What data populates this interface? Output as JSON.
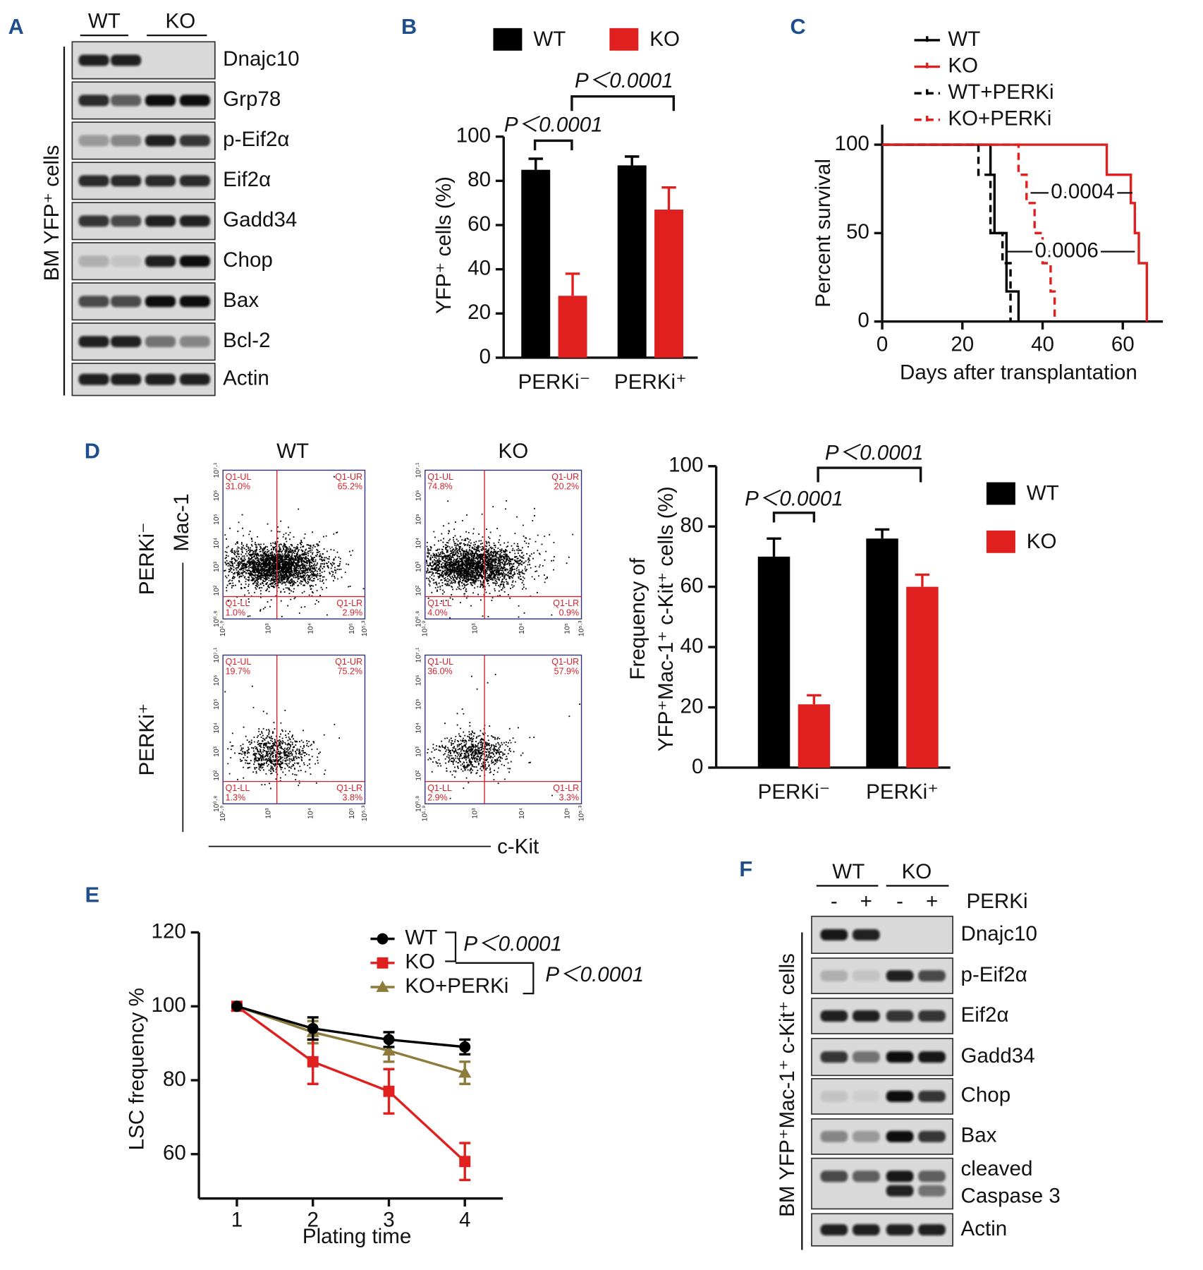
{
  "chart_data": [
    {
      "panel": "B",
      "type": "bar",
      "categories": [
        "PERKi⁻",
        "PERKi⁺"
      ],
      "series": [
        {
          "name": "WT",
          "color": "#000000",
          "values": [
            85,
            87
          ],
          "errors": [
            5,
            4
          ]
        },
        {
          "name": "KO",
          "color": "#e0201f",
          "values": [
            28,
            67
          ],
          "errors": [
            10,
            10
          ]
        }
      ],
      "y_label": "YFP⁺ cells (%)",
      "ylim": [
        0,
        100
      ],
      "yticks": [
        0,
        20,
        40,
        60,
        80,
        100
      ],
      "annotations": [
        "P＜0.0001",
        "P＜0.0001"
      ]
    },
    {
      "panel": "C",
      "type": "survival",
      "series": [
        {
          "name": "WT",
          "color": "#000000",
          "dashed": false,
          "x": [
            0,
            27,
            28,
            31,
            34
          ],
          "values": [
            100,
            83,
            50,
            17,
            0
          ]
        },
        {
          "name": "KO",
          "color": "#e0201f",
          "dashed": false,
          "x": [
            0,
            56,
            62,
            63,
            64,
            66
          ],
          "values": [
            100,
            83,
            67,
            50,
            33,
            0
          ]
        },
        {
          "name": "WT+PERKi",
          "color": "#000000",
          "dashed": true,
          "x": [
            0,
            24,
            27,
            30,
            32
          ],
          "values": [
            100,
            83,
            50,
            33,
            0
          ]
        },
        {
          "name": "KO+PERKi",
          "color": "#e0201f",
          "dashed": true,
          "x": [
            0,
            34,
            36,
            38,
            40,
            42,
            43
          ],
          "values": [
            100,
            83,
            67,
            50,
            33,
            17,
            0
          ]
        }
      ],
      "x_label": "Days after transplantation",
      "y_label": "Percent survival",
      "xlim": [
        0,
        70
      ],
      "xticks": [
        0,
        20,
        40,
        60
      ],
      "ylim": [
        0,
        100
      ],
      "yticks": [
        0,
        50,
        100
      ],
      "annotations": [
        "0.0004",
        "0.0006"
      ]
    },
    {
      "type": "bar",
      "categories": [
        "PERKi⁻",
        "PERKi⁺"
      ],
      "series": [
        {
          "name": "WT",
          "color": "#000000",
          "values": [
            70,
            76
          ],
          "errors": [
            6,
            3
          ]
        },
        {
          "name": "KO",
          "color": "#e0201f",
          "values": [
            21,
            60
          ],
          "errors": [
            3,
            4
          ]
        }
      ],
      "y_label": [
        "Frequency of",
        "YFP⁺Mac-1⁺ c-Kit⁺ cells (%)"
      ],
      "ylim": [
        0,
        100
      ],
      "yticks": [
        0,
        20,
        40,
        60,
        80,
        100
      ],
      "annotations": [
        "P＜0.0001",
        "P＜0.0001"
      ]
    },
    {
      "panel": "E",
      "type": "line",
      "x": [
        1,
        2,
        3,
        4
      ],
      "series": [
        {
          "name": "WT",
          "color": "#000000",
          "marker": "circle",
          "values": [
            100,
            94,
            91,
            89
          ],
          "errors": [
            0,
            3,
            2,
            2
          ]
        },
        {
          "name": "KO",
          "color": "#e0201f",
          "marker": "square",
          "values": [
            100,
            85,
            77,
            58
          ],
          "errors": [
            0,
            6,
            6,
            5
          ]
        },
        {
          "name": "KO+PERKi",
          "color": "#8c7b3b",
          "marker": "triangle",
          "values": [
            100,
            93,
            88,
            82
          ],
          "errors": [
            0,
            3,
            3,
            3
          ]
        }
      ],
      "x_label": "Plating time",
      "y_label": "LSC  frequency %",
      "xlim": [
        0.5,
        4.5
      ],
      "xticks": [
        1,
        2,
        3,
        4
      ],
      "ylim": [
        48,
        120
      ],
      "yticks": [
        60,
        80,
        100,
        120
      ],
      "annotations": [
        "P＜0.0001",
        "P＜0.0001"
      ]
    }
  ],
  "flow": {
    "panel": "D",
    "columns": [
      "WT",
      "KO"
    ],
    "rows": [
      "PERKi⁻",
      "PERKi⁺"
    ],
    "y_axis": "Mac-1",
    "x_axis": "c-Kit",
    "x_ticks": [
      "10¹·⁹",
      "10³",
      "10⁴",
      "10⁵",
      "10⁵·³"
    ],
    "y_ticks": [
      "10⁰·⁸",
      "10²",
      "10³",
      "10⁴",
      "10⁵",
      "10⁶",
      "10⁷·¹"
    ],
    "quadrant_names": [
      "Q1-UL",
      "Q1-UR",
      "Q1-LL",
      "Q1-LR"
    ],
    "plots": [
      [
        "31.0%",
        "65.2%",
        "1.0%",
        "2.9%"
      ],
      [
        "74.8%",
        "20.2%",
        "4.0%",
        "0.9%"
      ],
      [
        "19.7%",
        "75.2%",
        "1.3%",
        "3.8%"
      ],
      [
        "36.0%",
        "57.9%",
        "2.9%",
        "3.3%"
      ]
    ]
  },
  "blots": [
    {
      "panel": "A",
      "groups": [
        "WT",
        "KO"
      ],
      "y_label": "BM YFP⁺ cells",
      "rows": [
        {
          "label": "Dnajc10",
          "bands": [
            [
              0.9,
              0.9,
              0,
              0
            ]
          ]
        },
        {
          "label": "Grp78",
          "bands": [
            [
              0.85,
              0.6,
              1,
              1
            ]
          ]
        },
        {
          "label": "p-Eif2α",
          "bands": [
            [
              0.3,
              0.4,
              0.9,
              0.8
            ]
          ]
        },
        {
          "label": "Eif2α",
          "bands": [
            [
              0.85,
              0.85,
              0.85,
              0.85
            ]
          ]
        },
        {
          "label": "Gadd34",
          "bands": [
            [
              0.8,
              0.7,
              0.9,
              0.9
            ]
          ]
        },
        {
          "label": "Chop",
          "bands": [
            [
              0.2,
              0.1,
              0.9,
              1
            ]
          ]
        },
        {
          "label": "Bax",
          "bands": [
            [
              0.7,
              0.7,
              1,
              1
            ]
          ]
        },
        {
          "label": "Bcl-2",
          "bands": [
            [
              0.9,
              0.9,
              0.5,
              0.4
            ]
          ]
        },
        {
          "label": "Actin",
          "bands": [
            [
              0.9,
              0.9,
              0.9,
              0.9
            ]
          ]
        }
      ]
    },
    {
      "panel": "F",
      "groups": [
        "WT",
        "KO"
      ],
      "lane_labels": [
        "-",
        "+",
        "-",
        "+"
      ],
      "treatment": "PERKi",
      "y_label": "BM YFP⁺Mac-1⁺ c-Kit⁺ cells",
      "rows": [
        {
          "label": "Dnajc10",
          "bands": [
            [
              0.95,
              0.9,
              0,
              0
            ]
          ]
        },
        {
          "label": "p-Eif2α",
          "bands": [
            [
              0.2,
              0.1,
              0.9,
              0.7
            ]
          ]
        },
        {
          "label": "Eif2α",
          "bands": [
            [
              0.9,
              0.9,
              0.8,
              0.8
            ]
          ]
        },
        {
          "label": "Gadd34",
          "bands": [
            [
              0.8,
              0.5,
              1,
              0.95
            ]
          ]
        },
        {
          "label": "Chop",
          "bands": [
            [
              0.1,
              0.05,
              1,
              0.8
            ]
          ]
        },
        {
          "label": "Bax",
          "bands": [
            [
              0.4,
              0.3,
              1,
              0.8
            ]
          ]
        },
        {
          "label": [
            "cleaved",
            "Caspase 3"
          ],
          "bands": [
            [
              0.7,
              0.6,
              0.95,
              0.6
            ],
            [
              0,
              0,
              0.9,
              0.5
            ]
          ]
        },
        {
          "label": "Actin",
          "bands": [
            [
              0.9,
              0.9,
              0.9,
              0.9
            ]
          ]
        }
      ]
    }
  ]
}
